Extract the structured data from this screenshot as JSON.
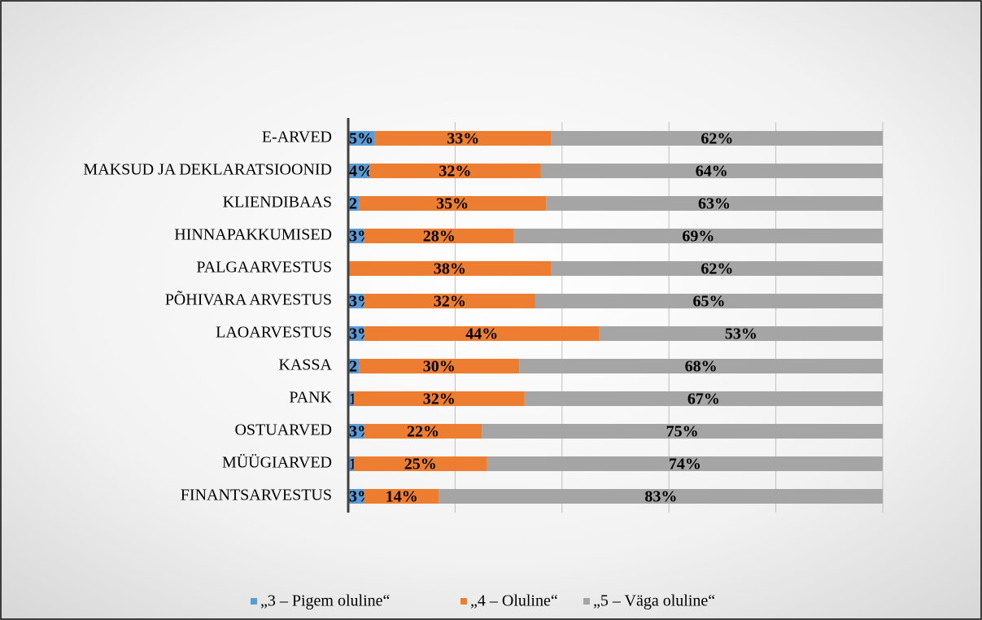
{
  "chart_data": {
    "type": "stacked_bar_horizontal",
    "categories": [
      "E-ARVED",
      "MAKSUD JA DEKLARATSIOONID",
      "KLIENDIBAAS",
      "HINNAPAKKUMISED",
      "PALGAARVESTUS",
      "PÕHIVARA ARVESTUS",
      "LAOARVESTUS",
      "KASSA",
      "PANK",
      "OSTUARVED",
      "MÜÜGIARVED",
      "FINANTSARVESTUS"
    ],
    "series": [
      {
        "name": "„3 – Pigem oluline“",
        "color": "#5b9bd5",
        "values": [
          5,
          4,
          2,
          3,
          null,
          3,
          3,
          2,
          1,
          3,
          1,
          3
        ],
        "value_labels": [
          "5%",
          "4%",
          "2%",
          "3%",
          null,
          "3%",
          "3%",
          "2%",
          "1%",
          "3%",
          "1%",
          "3%"
        ]
      },
      {
        "name": "„4 – Oluline“",
        "color": "#ed7d31",
        "values": [
          33,
          32,
          35,
          28,
          38,
          32,
          44,
          30,
          32,
          22,
          25,
          14
        ],
        "value_labels": [
          "33%",
          "32%",
          "35%",
          "28%",
          "38%",
          "32%",
          "44%",
          "30%",
          "32%",
          "22%",
          "25%",
          "14%"
        ]
      },
      {
        "name": "„5 – Väga oluline“",
        "color": "#a5a5a5",
        "values": [
          62,
          64,
          63,
          69,
          62,
          65,
          53,
          68,
          67,
          75,
          74,
          83
        ],
        "value_labels": [
          "62%",
          "64%",
          "63%",
          "69%",
          "62%",
          "65%",
          "53%",
          "68%",
          "67%",
          "75%",
          "74%",
          "83%"
        ]
      }
    ],
    "xlim": [
      0,
      100
    ],
    "xticks": [
      0,
      20,
      40,
      60,
      80,
      100
    ],
    "grid": true,
    "legend": "bottom"
  }
}
